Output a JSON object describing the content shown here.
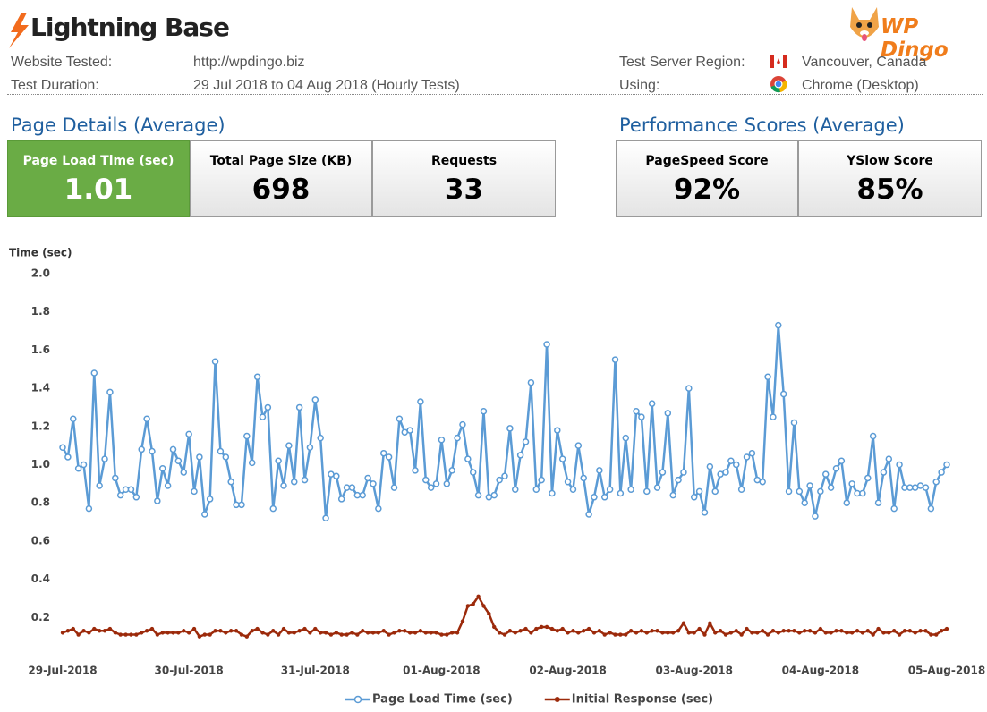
{
  "header": {
    "brand": "Lightning Base",
    "partner": "WP Dingo"
  },
  "info": {
    "website_label": "Website Tested:",
    "website": "http://wpdingo.biz",
    "duration_label": "Test Duration:",
    "duration": "29 Jul 2018 to 04 Aug 2018 (Hourly Tests)",
    "region_label": "Test Server Region:",
    "region": "Vancouver, Canada",
    "using_label": "Using:",
    "using": "Chrome (Desktop)"
  },
  "page_details": {
    "title": "Page Details (Average)",
    "cards": [
      {
        "label": "Page Load Time (sec)",
        "value": "1.01"
      },
      {
        "label": "Total Page Size (KB)",
        "value": "698"
      },
      {
        "label": "Requests",
        "value": "33"
      }
    ]
  },
  "performance": {
    "title": "Performance Scores (Average)",
    "cards": [
      {
        "label": "PageSpeed Score",
        "value": "92%"
      },
      {
        "label": "YSlow Score",
        "value": "85%"
      }
    ]
  },
  "chart_data": {
    "type": "line",
    "y_label": "Time (sec)",
    "categories": [
      "29-Jul-2018",
      null,
      null,
      null,
      null,
      null,
      null,
      null,
      null,
      null,
      null,
      null,
      null,
      null,
      null,
      null,
      null,
      null,
      null,
      null,
      null,
      null,
      null,
      null,
      "30-Jul-2018",
      null,
      null,
      null,
      null,
      null,
      null,
      null,
      null,
      null,
      null,
      null,
      null,
      null,
      null,
      null,
      null,
      null,
      null,
      null,
      null,
      null,
      null,
      null,
      "31-Jul-2018",
      null,
      null,
      null,
      null,
      null,
      null,
      null,
      null,
      null,
      null,
      null,
      null,
      null,
      null,
      null,
      null,
      null,
      null,
      null,
      null,
      null,
      null,
      null,
      "01-Aug-2018",
      null,
      null,
      null,
      null,
      null,
      null,
      null,
      null,
      null,
      null,
      null,
      null,
      null,
      null,
      null,
      null,
      null,
      null,
      null,
      null,
      null,
      null,
      null,
      "02-Aug-2018",
      null,
      null,
      null,
      null,
      null,
      null,
      null,
      null,
      null,
      null,
      null,
      null,
      null,
      null,
      null,
      null,
      null,
      null,
      null,
      null,
      null,
      null,
      null,
      "03-Aug-2018",
      null,
      null,
      null,
      null,
      null,
      null,
      null,
      null,
      null,
      null,
      null,
      null,
      null,
      null,
      null,
      null,
      null,
      null,
      null,
      null,
      null,
      null,
      null,
      "04-Aug-2018",
      null,
      null,
      null,
      null,
      null,
      null,
      null,
      null,
      null,
      null,
      null,
      null,
      null,
      null,
      null,
      null,
      null,
      null,
      null,
      null,
      null,
      null,
      null,
      "05-Aug-2018"
    ],
    "series": [
      {
        "name": "Page Load Time (sec)",
        "color": "#5b9bd5",
        "marker": "circle",
        "values": [
          1.09,
          1.04,
          1.24,
          0.98,
          1.0,
          0.77,
          1.48,
          0.89,
          1.03,
          1.38,
          0.93,
          0.84,
          0.87,
          0.87,
          0.83,
          1.08,
          1.24,
          1.07,
          0.81,
          0.98,
          0.89,
          1.08,
          1.02,
          0.96,
          1.16,
          0.86,
          1.04,
          0.74,
          0.82,
          1.54,
          1.07,
          1.04,
          0.91,
          0.79,
          0.79,
          1.15,
          1.01,
          1.46,
          1.25,
          1.3,
          0.77,
          1.02,
          0.89,
          1.1,
          0.91,
          1.3,
          0.92,
          1.09,
          1.34,
          1.14,
          0.72,
          0.95,
          0.94,
          0.82,
          0.88,
          0.88,
          0.84,
          0.84,
          0.93,
          0.9,
          0.77,
          1.06,
          1.04,
          0.88,
          1.24,
          1.17,
          1.18,
          0.97,
          1.33,
          0.92,
          0.88,
          0.9,
          1.13,
          0.9,
          0.97,
          1.14,
          1.21,
          1.03,
          0.96,
          0.84,
          1.28,
          0.83,
          0.84,
          0.92,
          0.94,
          1.19,
          0.87,
          1.05,
          1.12,
          1.43,
          0.87,
          0.92,
          1.63,
          0.85,
          1.18,
          1.03,
          0.91,
          0.87,
          1.1,
          0.93,
          0.74,
          0.83,
          0.97,
          0.83,
          0.87,
          1.55,
          0.85,
          1.14,
          0.87,
          1.28,
          1.25,
          0.86,
          1.32,
          0.88,
          0.96,
          1.27,
          0.84,
          0.92,
          0.96,
          1.4,
          0.83,
          0.86,
          0.75,
          0.99,
          0.86,
          0.95,
          0.96,
          1.02,
          1.0,
          0.87,
          1.04,
          1.06,
          0.92,
          0.91,
          1.46,
          1.25,
          1.73,
          1.37,
          0.86,
          1.22,
          0.86,
          0.8,
          0.89,
          0.73,
          0.86,
          0.95,
          0.88,
          0.98,
          1.02,
          0.8,
          0.9,
          0.85,
          0.85,
          0.93,
          1.15,
          0.8,
          0.96,
          1.03,
          0.77,
          1.0,
          0.88,
          0.88,
          0.88,
          0.89,
          0.88,
          0.77,
          0.91,
          0.96,
          1.0
        ]
      },
      {
        "name": "Initial Response (sec)",
        "color": "#9c2a0b",
        "marker": "dot",
        "values": [
          0.12,
          0.13,
          0.14,
          0.11,
          0.13,
          0.12,
          0.14,
          0.13,
          0.13,
          0.14,
          0.12,
          0.11,
          0.11,
          0.11,
          0.11,
          0.12,
          0.13,
          0.14,
          0.11,
          0.12,
          0.12,
          0.12,
          0.12,
          0.13,
          0.12,
          0.14,
          0.1,
          0.11,
          0.11,
          0.13,
          0.13,
          0.12,
          0.13,
          0.13,
          0.11,
          0.1,
          0.13,
          0.14,
          0.12,
          0.11,
          0.13,
          0.11,
          0.14,
          0.12,
          0.12,
          0.13,
          0.14,
          0.12,
          0.14,
          0.12,
          0.12,
          0.11,
          0.12,
          0.11,
          0.11,
          0.12,
          0.11,
          0.13,
          0.12,
          0.12,
          0.12,
          0.13,
          0.11,
          0.12,
          0.13,
          0.13,
          0.12,
          0.12,
          0.13,
          0.12,
          0.12,
          0.12,
          0.11,
          0.11,
          0.12,
          0.12,
          0.18,
          0.26,
          0.27,
          0.31,
          0.26,
          0.22,
          0.15,
          0.12,
          0.11,
          0.13,
          0.12,
          0.13,
          0.14,
          0.12,
          0.14,
          0.15,
          0.15,
          0.14,
          0.13,
          0.14,
          0.12,
          0.13,
          0.12,
          0.13,
          0.14,
          0.12,
          0.13,
          0.11,
          0.12,
          0.11,
          0.11,
          0.11,
          0.13,
          0.12,
          0.13,
          0.12,
          0.13,
          0.13,
          0.12,
          0.12,
          0.12,
          0.13,
          0.17,
          0.12,
          0.12,
          0.14,
          0.11,
          0.17,
          0.12,
          0.13,
          0.11,
          0.12,
          0.13,
          0.11,
          0.14,
          0.12,
          0.12,
          0.13,
          0.11,
          0.13,
          0.12,
          0.13,
          0.13,
          0.13,
          0.12,
          0.13,
          0.13,
          0.12,
          0.14,
          0.12,
          0.12,
          0.13,
          0.13,
          0.12,
          0.12,
          0.13,
          0.12,
          0.13,
          0.11,
          0.14,
          0.12,
          0.12,
          0.13,
          0.11,
          0.13,
          0.13,
          0.12,
          0.13,
          0.13,
          0.11,
          0.11,
          0.13,
          0.14
        ]
      }
    ],
    "ylim": [
      0,
      2
    ],
    "yticks": [
      0.2,
      0.4,
      0.6,
      0.8,
      {
        "value": 1,
        "label": "1.0"
      },
      1.2,
      1.4,
      1.6,
      1.8,
      {
        "value": 2,
        "label": "2.0"
      }
    ],
    "grid": false,
    "legend": "bottom"
  }
}
